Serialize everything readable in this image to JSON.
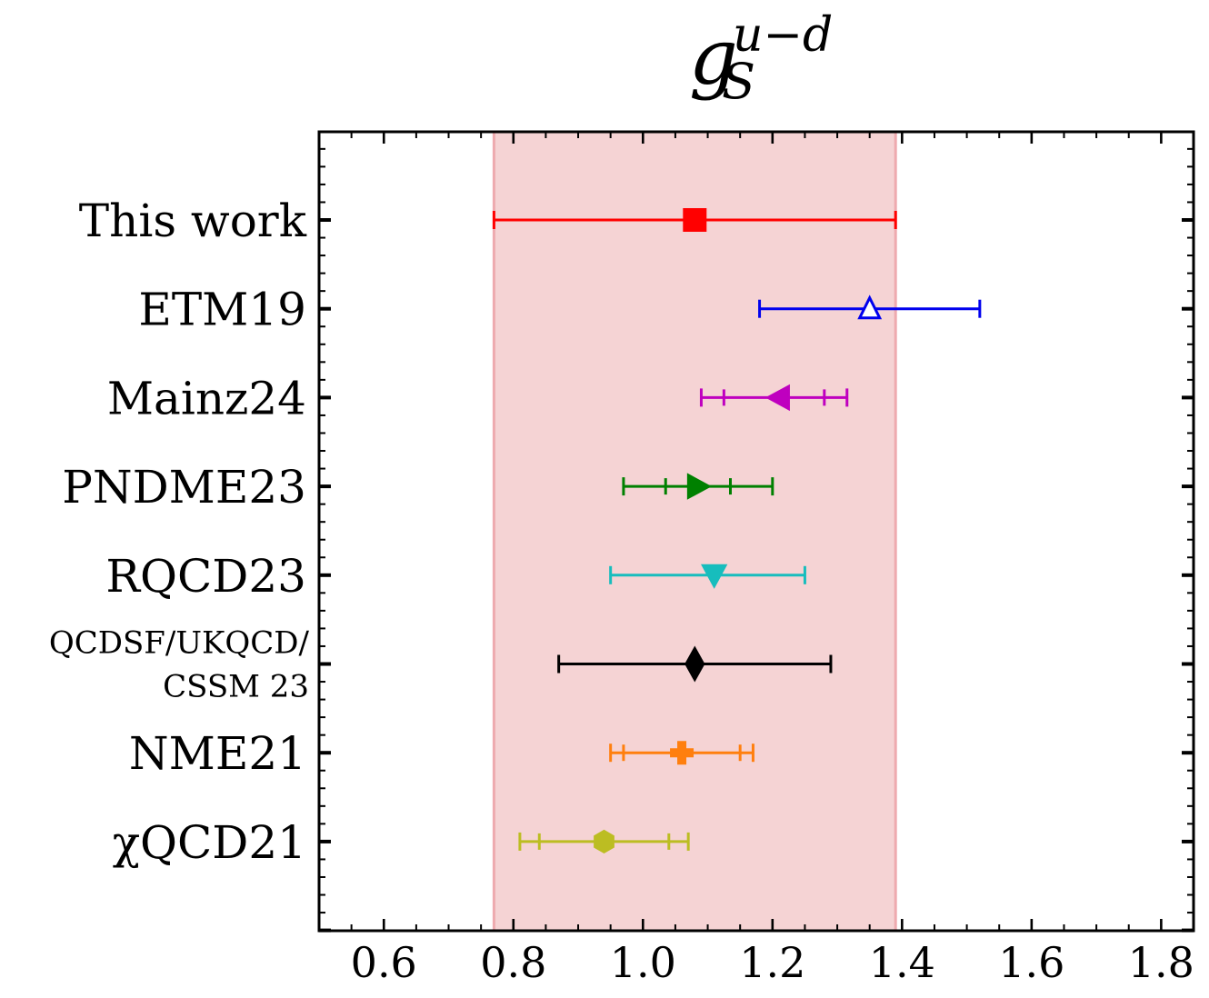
{
  "chart_data": {
    "type": "scatter",
    "title": "g_S^{u−d}",
    "title_parts": {
      "base": "g",
      "sub": "S",
      "sup": "u−d"
    },
    "xlabel": "",
    "ylabel": "",
    "xlim": [
      0.5,
      1.85
    ],
    "xticks": [
      0.6,
      0.8,
      1.0,
      1.2,
      1.4,
      1.6,
      1.8
    ],
    "xtick_labels": [
      "0.6",
      "0.8",
      "1.0",
      "1.2",
      "1.4",
      "1.6",
      "1.8"
    ],
    "band": {
      "from": 0.77,
      "to": 1.39,
      "color": "#f5d3d4",
      "edge_color": "#eeaaaf"
    },
    "grid": false,
    "series": [
      {
        "label": [
          "This work"
        ],
        "value": 1.08,
        "err_outer": [
          0.77,
          1.39
        ],
        "err_inner": null,
        "color": "#ff0000",
        "marker": "square",
        "filled": true
      },
      {
        "label": [
          "ETM19"
        ],
        "value": 1.35,
        "err_outer": [
          1.18,
          1.52
        ],
        "err_inner": null,
        "color": "#0000ee",
        "marker": "triangle-up",
        "filled": false
      },
      {
        "label": [
          "Mainz24"
        ],
        "value": 1.21,
        "err_outer": [
          1.09,
          1.315
        ],
        "err_inner": [
          1.125,
          1.28
        ],
        "color": "#bf00bf",
        "marker": "triangle-left",
        "filled": true
      },
      {
        "label": [
          "PNDME23"
        ],
        "value": 1.085,
        "err_outer": [
          0.97,
          1.2
        ],
        "err_inner": [
          1.035,
          1.135
        ],
        "color": "#008000",
        "marker": "triangle-right",
        "filled": true
      },
      {
        "label": [
          "RQCD23"
        ],
        "value": 1.11,
        "err_outer": [
          0.95,
          1.25
        ],
        "err_inner": null,
        "color": "#17bdbd",
        "marker": "triangle-down",
        "filled": true
      },
      {
        "label": [
          "QCDSF/UKQCD/",
          "CSSM 23"
        ],
        "value": 1.08,
        "err_outer": [
          0.87,
          1.29
        ],
        "err_inner": null,
        "color": "#000000",
        "marker": "diamond",
        "filled": true
      },
      {
        "label": [
          "NME21"
        ],
        "value": 1.06,
        "err_outer": [
          0.95,
          1.17
        ],
        "err_inner": [
          0.97,
          1.15
        ],
        "color": "#ff7f0e",
        "marker": "plus",
        "filled": true
      },
      {
        "label": [
          "χQCD21"
        ],
        "value": 0.94,
        "err_outer": [
          0.81,
          1.07
        ],
        "err_inner": [
          0.84,
          1.04
        ],
        "color": "#bcbd22",
        "marker": "hexagon",
        "filled": true
      }
    ]
  }
}
